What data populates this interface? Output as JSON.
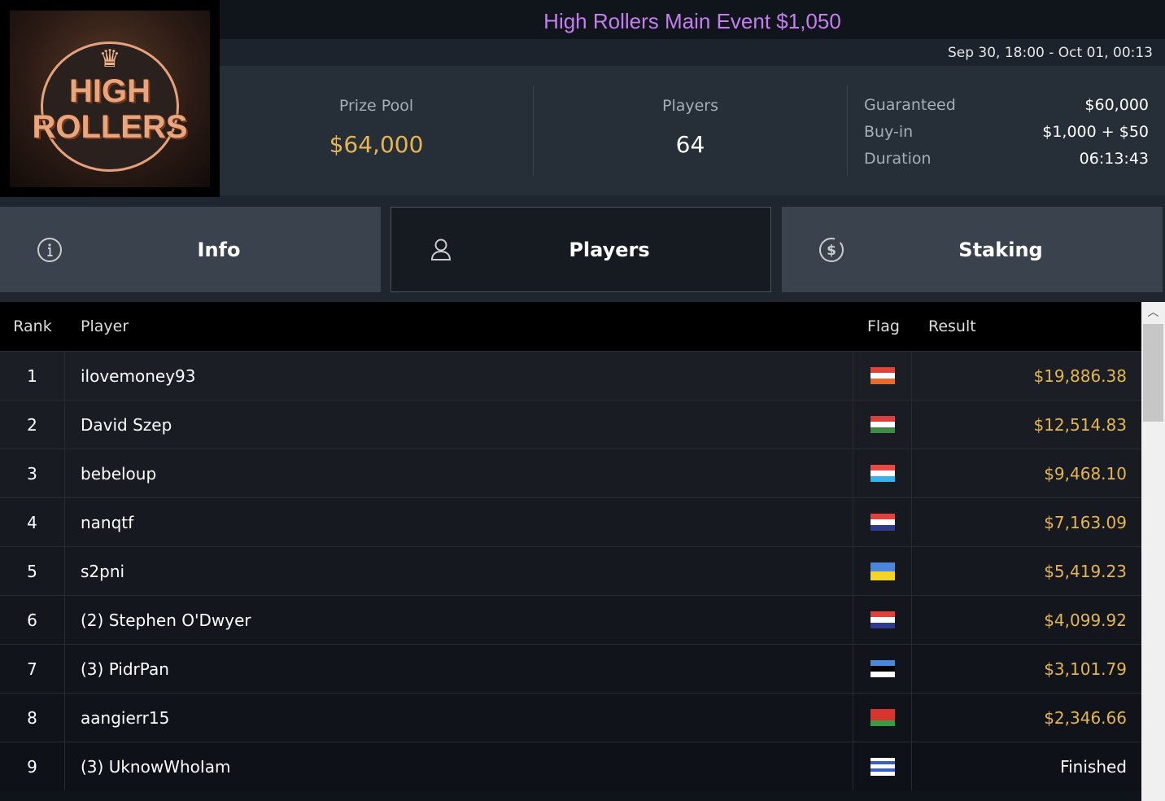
{
  "logo": {
    "text": "HIGH ROLLERS"
  },
  "header": {
    "title": "High Rollers Main Event $1,050",
    "dates": "Sep 30, 18:00 - Oct 01, 00:13"
  },
  "stats": {
    "prize_pool_label": "Prize Pool",
    "prize_pool": "$64,000",
    "players_label": "Players",
    "players": "64"
  },
  "details": [
    {
      "k": "Guaranteed",
      "v": "$60,000"
    },
    {
      "k": "Buy-in",
      "v": "$1,000 + $50"
    },
    {
      "k": "Duration",
      "v": "06:13:43"
    }
  ],
  "tabs": [
    {
      "label": "Info",
      "icon": "info-icon"
    },
    {
      "label": "Players",
      "icon": "user-icon",
      "active": true
    },
    {
      "label": "Staking",
      "icon": "dollar-icon"
    }
  ],
  "table": {
    "headers": {
      "rank": "Rank",
      "player": "Player",
      "flag": "Flag",
      "result": "Result"
    },
    "rows": [
      {
        "rank": "1",
        "player": "ilovemoney93",
        "flag": [
          "#e0413b",
          "#ffffff",
          "#e86a2a"
        ],
        "result": "$19,886.38"
      },
      {
        "rank": "2",
        "player": "David Szep",
        "flag": [
          "#d9403d",
          "#ffffff",
          "#3f8a47"
        ],
        "result": "$12,514.83"
      },
      {
        "rank": "3",
        "player": "bebeloup",
        "flag": [
          "#ea4a45",
          "#ffffff",
          "#35b3e8"
        ],
        "result": "$9,468.10"
      },
      {
        "rank": "4",
        "player": "nanqtf",
        "flag": [
          "#e0413b",
          "#ffffff",
          "#2f3b8f"
        ],
        "result": "$7,163.09"
      },
      {
        "rank": "5",
        "player": "s2pni",
        "flag": [
          "#4a86d9",
          "#f5d42a"
        ],
        "result": "$5,419.23"
      },
      {
        "rank": "6",
        "player": "(2) Stephen O'Dwyer",
        "flag": [
          "#e0413b",
          "#ffffff",
          "#2f3b8f"
        ],
        "result": "$4,099.92"
      },
      {
        "rank": "7",
        "player": "(3) PidrPan",
        "flag": [
          "#4a86d9",
          "#000000",
          "#ffffff"
        ],
        "result": "$3,101.79"
      },
      {
        "rank": "8",
        "player": "aangierr15",
        "flag": [
          "#d8352f",
          "#d8352f",
          "#3a9a44"
        ],
        "result": "$2,346.66"
      },
      {
        "rank": "9",
        "player": "(3) UknowWhoIam",
        "flag": [
          "#ffffff",
          "#3a5fc0",
          "#ffffff",
          "#3a5fc0",
          "#ffffff"
        ],
        "result": "Finished"
      }
    ]
  },
  "colors": {
    "title": "#c57ef0",
    "gold": "#e4b552"
  }
}
